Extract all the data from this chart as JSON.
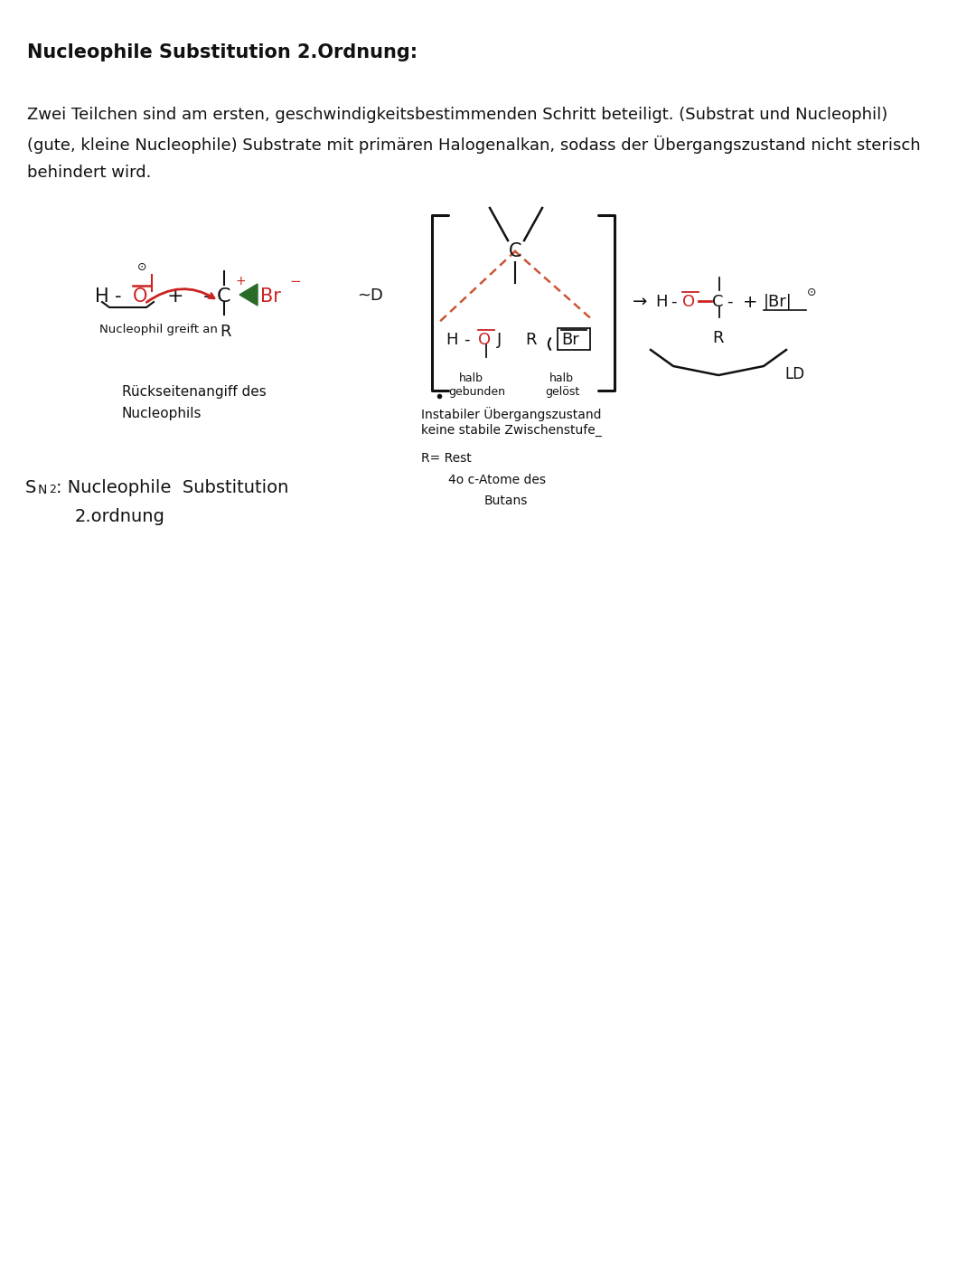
{
  "title": "Nucleophile Substitution 2.Ordnung:",
  "para1": "Zwei Teilchen sind am ersten, geschwindigkeitsbestimmenden Schritt beteiligt. (Substrat und Nucleophil)",
  "para2": "(gute, kleine Nucleophile) Substrate mit primären Halogenalkan, sodass der Übergangszustand nicht sterisch",
  "para3": "behindert wird.",
  "bg_color": "#ffffff",
  "tc": "#111111",
  "rc": "#cc2222",
  "gc": "#2a6b2a",
  "title_fs": 15,
  "body_fs": 13
}
